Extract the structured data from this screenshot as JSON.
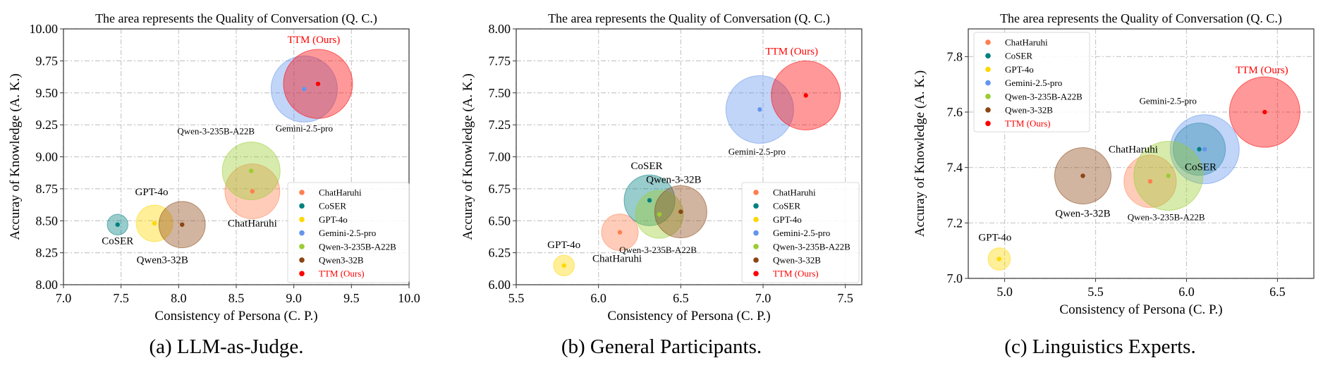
{
  "figure": {
    "captions": [
      "(a) LLM-as-Judge.",
      "(b) General Participants.",
      "(c) Linguistics Experts."
    ]
  },
  "colors": {
    "ChatHaruhi": "#FF7F50",
    "CoSER": "#008080",
    "GPT-4o": "#FFD700",
    "Gemini-2.5-pro": "#6495ED",
    "Qwen-3-235B-A22B": "#9ACD32",
    "Qwen-3-32B": "#8B4513",
    "TTM (Ours)": "#FF0000"
  },
  "chart_data": [
    {
      "type": "scatter",
      "subtype": "bubble",
      "title": "The area represents the Quality of Conversation (Q. C.)",
      "xlabel": "Consistency of Persona (C. P.)",
      "ylabel": "Accuray of Knowledge (A. K.)",
      "xlim": [
        7.0,
        10.0
      ],
      "ylim": [
        8.0,
        10.0
      ],
      "xticks": [
        "7.0",
        "7.5",
        "8.0",
        "8.5",
        "9.0",
        "9.5",
        "10.0"
      ],
      "yticks": [
        "8.00",
        "8.25",
        "8.50",
        "8.75",
        "9.00",
        "9.25",
        "9.50",
        "9.75",
        "10.00"
      ],
      "grid": true,
      "legend_position": "lower-right",
      "legend": [
        "ChatHaruhi",
        "CoSER",
        "GPT-4o",
        "Gemini-2.5-pro",
        "Qwen-3-235B-A22B",
        "Qwen3-32B",
        "TTM (Ours)"
      ],
      "points": [
        {
          "name": "ChatHaruhi",
          "color_key": "ChatHaruhi",
          "x": 8.64,
          "y": 8.73,
          "qc_relative_size": 0.63,
          "label": "ChatHaruhi"
        },
        {
          "name": "CoSER",
          "color_key": "CoSER",
          "x": 7.47,
          "y": 8.47,
          "qc_relative_size": 0.09,
          "label": "CoSER"
        },
        {
          "name": "GPT-4o",
          "color_key": "GPT-4o",
          "x": 7.79,
          "y": 8.48,
          "qc_relative_size": 0.28,
          "label": "GPT-4o"
        },
        {
          "name": "Gemini-2.5-pro",
          "color_key": "Gemini-2.5-pro",
          "x": 9.09,
          "y": 9.53,
          "qc_relative_size": 0.92,
          "label": "Gemini-2.5-pro"
        },
        {
          "name": "Qwen-3-235B-A22B",
          "color_key": "Qwen-3-235B-A22B",
          "x": 8.63,
          "y": 8.89,
          "qc_relative_size": 0.7,
          "label": "Qwen-3-235B-A22B"
        },
        {
          "name": "Qwen3-32B",
          "color_key": "Qwen-3-32B",
          "x": 8.03,
          "y": 8.47,
          "qc_relative_size": 0.45,
          "label": "Qwen3-32B"
        },
        {
          "name": "TTM (Ours)",
          "color_key": "TTM (Ours)",
          "x": 9.21,
          "y": 9.57,
          "qc_relative_size": 1.0,
          "label": "TTM (Ours)"
        }
      ]
    },
    {
      "type": "scatter",
      "subtype": "bubble",
      "title": "The area represents the Quality of Conversation (Q. C.)",
      "xlabel": "Consistency of Persona (C. P.)",
      "ylabel": "Accuray of Knowledge (A. K.)",
      "xlim": [
        5.5,
        7.6
      ],
      "ylim": [
        6.0,
        8.0
      ],
      "xticks": [
        "5.5",
        "6.0",
        "6.5",
        "7.0",
        "7.5"
      ],
      "yticks": [
        "6.00",
        "6.25",
        "6.50",
        "6.75",
        "7.00",
        "7.25",
        "7.50",
        "7.75",
        "8.00"
      ],
      "grid": true,
      "legend_position": "lower-right",
      "legend": [
        "ChatHaruhi",
        "CoSER",
        "GPT-4o",
        "Gemini-2.5-pro",
        "Qwen-3-235B-A22B",
        "Qwen-3-32B",
        "TTM (Ours)"
      ],
      "points": [
        {
          "name": "ChatHaruhi",
          "color_key": "ChatHaruhi",
          "x": 6.13,
          "y": 6.41,
          "qc_relative_size": 0.28,
          "label": "ChatHaruhi"
        },
        {
          "name": "CoSER",
          "color_key": "CoSER",
          "x": 6.31,
          "y": 6.66,
          "qc_relative_size": 0.54,
          "label": "CoSER"
        },
        {
          "name": "GPT-4o",
          "color_key": "GPT-4o",
          "x": 5.79,
          "y": 6.15,
          "qc_relative_size": 0.09,
          "label": "GPT-4o"
        },
        {
          "name": "Gemini-2.5-pro",
          "color_key": "Gemini-2.5-pro",
          "x": 6.98,
          "y": 7.37,
          "qc_relative_size": 0.96,
          "label": "Gemini-2.5-pro"
        },
        {
          "name": "Qwen-3-235B-A22B",
          "color_key": "Qwen-3-235B-A22B",
          "x": 6.37,
          "y": 6.55,
          "qc_relative_size": 0.48,
          "label": "Qwen-3-235B-A22B"
        },
        {
          "name": "Qwen-3-32B",
          "color_key": "Qwen-3-32B",
          "x": 6.5,
          "y": 6.57,
          "qc_relative_size": 0.57,
          "label": "Qwen-3-32B"
        },
        {
          "name": "TTM (Ours)",
          "color_key": "TTM (Ours)",
          "x": 7.26,
          "y": 7.48,
          "qc_relative_size": 1.0,
          "label": "TTM (Ours)"
        }
      ]
    },
    {
      "type": "scatter",
      "subtype": "bubble",
      "title": "The area represents the Quality of Conversation (Q. C.)",
      "xlabel": "Consistency of Persona (C. P.)",
      "ylabel": "Accuray of Knowledge (A. K.)",
      "xlim": [
        4.8,
        6.7
      ],
      "ylim": [
        7.0,
        7.9
      ],
      "xticks": [
        "5.0",
        "5.5",
        "6.0",
        "6.5"
      ],
      "yticks": [
        "7.0",
        "7.2",
        "7.4",
        "7.6",
        "7.8"
      ],
      "grid": true,
      "legend_position": "upper-left",
      "legend": [
        "ChatHaruhi",
        "CoSER",
        "GPT-4o",
        "Gemini-2.5-pro",
        "Qwen-3-235B-A22B",
        "Qwen-3-32B",
        "TTM (Ours)"
      ],
      "points": [
        {
          "name": "ChatHaruhi",
          "color_key": "ChatHaruhi",
          "x": 5.8,
          "y": 7.35,
          "qc_relative_size": 0.55,
          "label": "ChatHaruhi"
        },
        {
          "name": "CoSER",
          "color_key": "CoSER",
          "x": 6.07,
          "y": 7.466,
          "qc_relative_size": 0.55,
          "label": "CoSER"
        },
        {
          "name": "GPT-4o",
          "color_key": "GPT-4o",
          "x": 4.97,
          "y": 7.07,
          "qc_relative_size": 0.1,
          "label": "GPT-4o"
        },
        {
          "name": "Gemini-2.5-pro",
          "color_key": "Gemini-2.5-pro",
          "x": 6.1,
          "y": 7.466,
          "qc_relative_size": 0.96,
          "label": "Gemini-2.5-pro"
        },
        {
          "name": "Qwen-3-235B-A22B",
          "color_key": "Qwen-3-235B-A22B",
          "x": 5.9,
          "y": 7.37,
          "qc_relative_size": 0.96,
          "label": "Qwen-3-235B-A22B"
        },
        {
          "name": "Qwen-3-32B",
          "color_key": "Qwen-3-32B",
          "x": 5.43,
          "y": 7.37,
          "qc_relative_size": 0.64,
          "label": "Qwen-3-32B"
        },
        {
          "name": "TTM (Ours)",
          "color_key": "TTM (Ours)",
          "x": 6.43,
          "y": 7.6,
          "qc_relative_size": 1.0,
          "label": "TTM (Ours)"
        }
      ]
    }
  ]
}
